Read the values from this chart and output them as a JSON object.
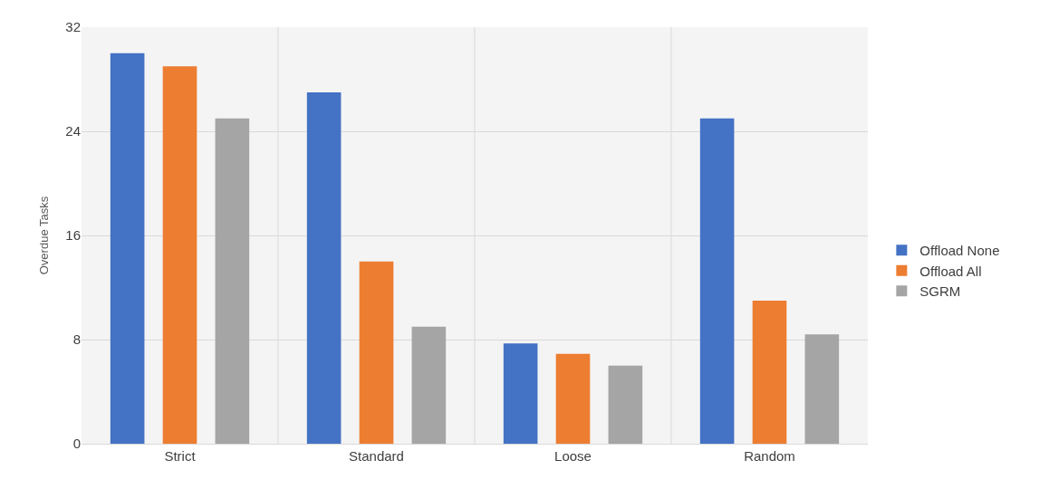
{
  "chart_data": {
    "type": "bar",
    "ylabel": "Overdue Tasks",
    "categories": [
      "Strict",
      "Standard",
      "Loose",
      "Random"
    ],
    "series": [
      {
        "name": "Offload None",
        "color": "#4472c4",
        "values": [
          30,
          27,
          7.7,
          25
        ]
      },
      {
        "name": "Offload All",
        "color": "#ed7d31",
        "values": [
          29,
          14,
          6.9,
          11
        ]
      },
      {
        "name": "SGRM",
        "color": "#a5a5a5",
        "values": [
          25,
          9,
          6,
          8.4
        ]
      }
    ],
    "ylim": [
      0,
      32
    ],
    "yticks": [
      0,
      8,
      16,
      24,
      32
    ],
    "grid": true,
    "legend": "right"
  }
}
